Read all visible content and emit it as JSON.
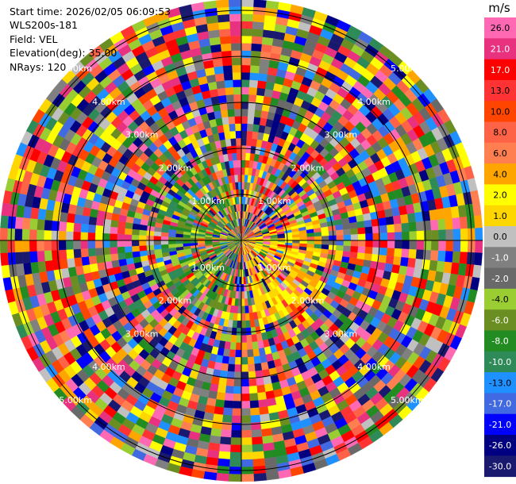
{
  "info": {
    "start_time_label": "Start time:",
    "start_time": "2026/02/05 06:09:53",
    "site": "WLS200s-181",
    "field_label": "Field:",
    "field": "VEL",
    "elevation_label": "Elevation(deg):",
    "elevation": "35.00",
    "nrays_label": "NRays:",
    "nrays": "120"
  },
  "ppi": {
    "ring_labels": [
      "1.00km",
      "2.00km",
      "3.00km",
      "4.00km",
      "5.00km"
    ],
    "nrays": 120,
    "ngates": 33
  },
  "colorbar": {
    "unit": "m/s",
    "ticks": [
      "26.0",
      "21.0",
      "17.0",
      "13.0",
      "10.0",
      "8.0",
      "6.0",
      "4.0",
      "2.0",
      "1.0",
      "0.0",
      "-1.0",
      "-2.0",
      "-4.0",
      "-6.0",
      "-8.0",
      "-10.0",
      "-13.0",
      "-17.0",
      "-21.0",
      "-26.0",
      "-30.0"
    ],
    "colors": [
      "#ff69b4",
      "#e8327f",
      "#ff0000",
      "#ff3333",
      "#ff4500",
      "#ff6347",
      "#ff7f50",
      "#ffa500",
      "#ffff00",
      "#ffd700",
      "#c0c0c0",
      "#808080",
      "#696969",
      "#9acd32",
      "#6b8e23",
      "#228b22",
      "#2e8b57",
      "#1e90ff",
      "#4169e1",
      "#0000ff",
      "#000080",
      "#191970"
    ]
  }
}
